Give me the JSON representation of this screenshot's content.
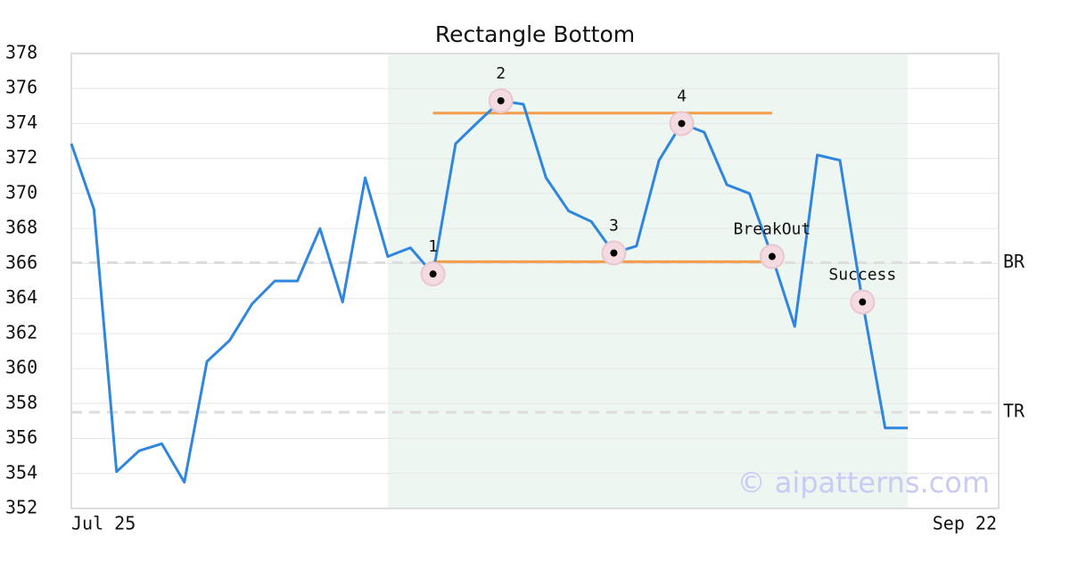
{
  "chart_data": {
    "type": "line",
    "title": "Rectangle Bottom",
    "categories": [
      "Jul 25",
      null,
      null,
      null,
      null,
      null,
      null,
      null,
      null,
      null,
      null,
      null,
      null,
      null,
      null,
      null,
      null,
      null,
      null,
      null,
      null,
      null,
      null,
      null,
      null,
      null,
      null,
      null,
      null,
      null,
      null,
      null,
      null,
      null,
      null,
      null,
      null,
      "Sep 22"
    ],
    "values": [
      372.85,
      369.1,
      354.1,
      355.3,
      355.7,
      353.5,
      360.4,
      361.6,
      363.7,
      365.0,
      365.0,
      368.0,
      363.8,
      370.9,
      366.4,
      366.9,
      365.4,
      372.85,
      374.1,
      375.3,
      375.1,
      370.9,
      369.0,
      368.4,
      366.6,
      367.0,
      371.9,
      374.0,
      373.5,
      370.5,
      370.0,
      366.4,
      362.4,
      372.2,
      371.9,
      363.8,
      356.6,
      356.6
    ],
    "color": "#2e86de",
    "ylim": [
      352,
      378
    ],
    "yticks": [
      352,
      354,
      356,
      358,
      360,
      362,
      364,
      366,
      368,
      370,
      372,
      374,
      376,
      378
    ],
    "grid": true,
    "highlight": {
      "start": 14,
      "end": 37,
      "color": "#eef6f2"
    },
    "pattern": {
      "top": 374.6,
      "bottom": 366.1,
      "start": 16,
      "end": 31,
      "color": "#f39c4a"
    },
    "levels": [
      {
        "label": "BR",
        "value": 366.05
      },
      {
        "label": "TR",
        "value": 357.5
      }
    ],
    "annotations": [
      {
        "label": "1",
        "index": 16,
        "value": 365.4
      },
      {
        "label": "2",
        "index": 19,
        "value": 375.3
      },
      {
        "label": "3",
        "index": 24,
        "value": 366.6
      },
      {
        "label": "4",
        "index": 27,
        "value": 374.0
      },
      {
        "label": "BreakOut",
        "index": 31,
        "value": 366.4
      },
      {
        "label": "Success",
        "index": 35,
        "value": 363.8
      }
    ],
    "watermark": "© aipatterns.com"
  }
}
